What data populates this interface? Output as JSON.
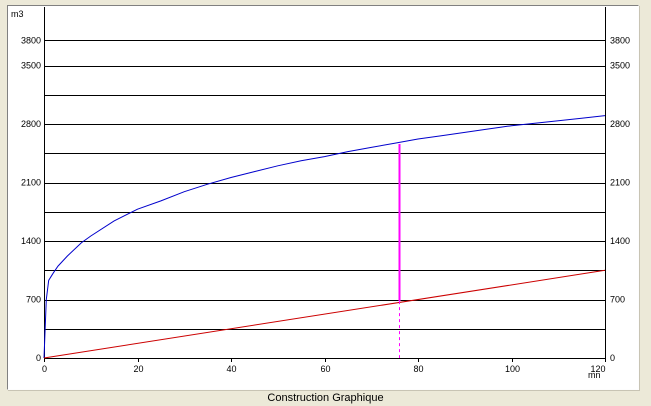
{
  "caption": "Construction Graphique",
  "chart_data": {
    "type": "line",
    "title": "",
    "xlabel": "mn",
    "ylabel": "m3",
    "xlim": [
      0,
      120
    ],
    "ylim": [
      0,
      4200
    ],
    "grid": true,
    "legend": "none",
    "x_ticks": [
      0,
      20,
      40,
      60,
      80,
      100,
      120
    ],
    "y_tick_labels": [
      {
        "value": 0,
        "label": "0"
      },
      {
        "value": 700,
        "label": "700"
      },
      {
        "value": 1400,
        "label": "1400"
      },
      {
        "value": 2100,
        "label": "2100"
      },
      {
        "value": 2800,
        "label": "2800"
      },
      {
        "value": 3500,
        "label": "3500"
      },
      {
        "value": 3800,
        "label": "3800"
      }
    ],
    "y_gridlines": [
      0,
      350,
      700,
      1050,
      1400,
      1750,
      2100,
      2450,
      2800,
      3150,
      3500,
      3800
    ],
    "series": [
      {
        "color": "#0000cc",
        "x": [
          0,
          0.5,
          1,
          2,
          3,
          5,
          8,
          10,
          15,
          20,
          25,
          30,
          35,
          40,
          45,
          50,
          55,
          60,
          65,
          70,
          75,
          80,
          85,
          90,
          95,
          100,
          105,
          110,
          115,
          120
        ],
        "y": [
          0,
          700,
          930,
          1020,
          1100,
          1220,
          1380,
          1460,
          1640,
          1780,
          1880,
          1990,
          2080,
          2160,
          2230,
          2300,
          2360,
          2410,
          2470,
          2520,
          2570,
          2620,
          2660,
          2700,
          2740,
          2780,
          2810,
          2840,
          2870,
          2900
        ]
      },
      {
        "color": "#cc0000",
        "x": [
          0,
          120
        ],
        "y": [
          0,
          1050
        ]
      }
    ],
    "construction": {
      "x": 76,
      "y_low": 680,
      "y_high": 2560,
      "color": "#ff00ff"
    }
  },
  "colors": {
    "background": "#ECE9D8",
    "plot_background": "#ffffff",
    "gridline": "#000000"
  }
}
